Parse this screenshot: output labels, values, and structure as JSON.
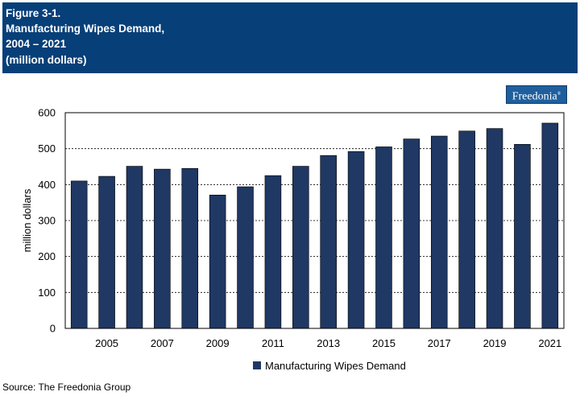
{
  "header": {
    "line1": "Figure 3-1.",
    "line2": "Manufacturing Wipes Demand,",
    "line3": "2004 – 2021",
    "line4": "(million dollars)"
  },
  "logo": {
    "text": "Freedonia",
    "mark": "®"
  },
  "source": "Source: The Freedonia Group",
  "colors": {
    "header_bg": "#073f78",
    "bar": "#1f3864"
  },
  "chart_data": {
    "type": "bar",
    "categories": [
      "2004",
      "2005",
      "2006",
      "2007",
      "2008",
      "2009",
      "2010",
      "2011",
      "2012",
      "2013",
      "2014",
      "2015",
      "2016",
      "2017",
      "2018",
      "2019",
      "2020",
      "2021"
    ],
    "x_tick_labels": [
      "2005",
      "2007",
      "2009",
      "2011",
      "2013",
      "2015",
      "2017",
      "2019",
      "2021"
    ],
    "series": [
      {
        "name": "Manufacturing Wipes Demand",
        "values": [
          410,
          423,
          451,
          443,
          445,
          371,
          394,
          425,
          451,
          481,
          492,
          505,
          527,
          535,
          549,
          556,
          512,
          571
        ]
      }
    ],
    "y_ticks": [
      0,
      100,
      200,
      300,
      400,
      500,
      600
    ],
    "ylabel": "million dollars",
    "ylim": [
      0,
      600
    ],
    "grid": "horizontal dashed",
    "legend_position": "bottom"
  }
}
